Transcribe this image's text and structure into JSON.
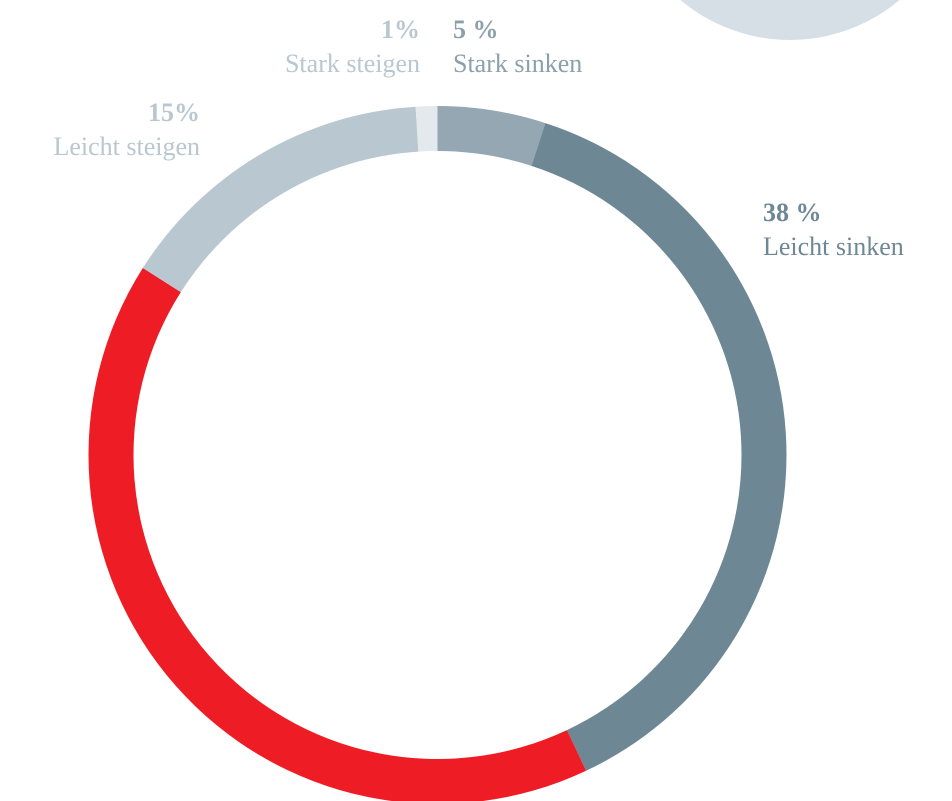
{
  "chart_data": {
    "type": "donut",
    "categories": [
      "Stark sinken",
      "Leicht sinken",
      null,
      "Leicht steigen",
      "Stark steigen"
    ],
    "values": [
      5,
      38,
      41,
      15,
      1
    ],
    "value_labels": [
      "5 %",
      "38 %",
      null,
      "15%",
      "1%"
    ],
    "colors": [
      "#94a7b2",
      "#6d8795",
      "#ee1c25",
      "#b8c7d0",
      "#e3e9ed"
    ],
    "label_colors": [
      "#8ca0ab",
      "#6d8795",
      null,
      "#b8c7d0",
      "#b8c7d0"
    ]
  }
}
